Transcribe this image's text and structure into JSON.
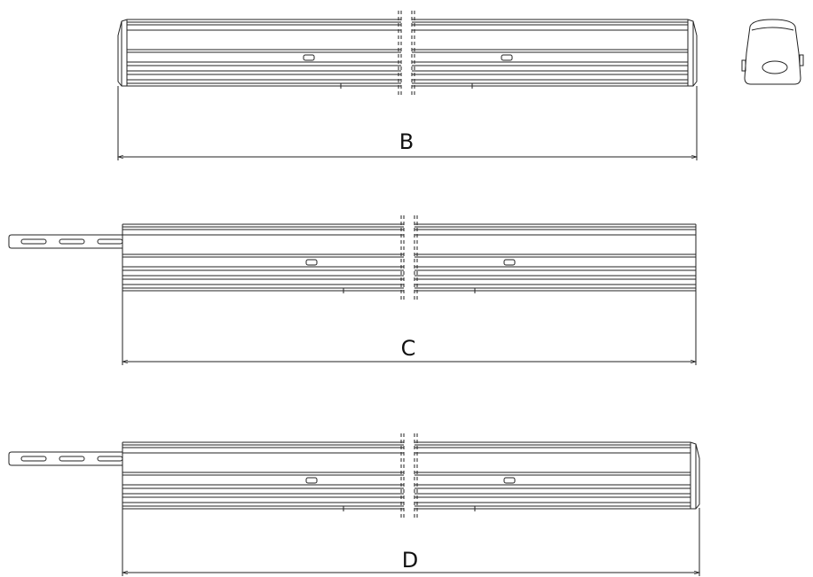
{
  "dimensions": {
    "b": "B",
    "c": "C",
    "d": "D"
  }
}
